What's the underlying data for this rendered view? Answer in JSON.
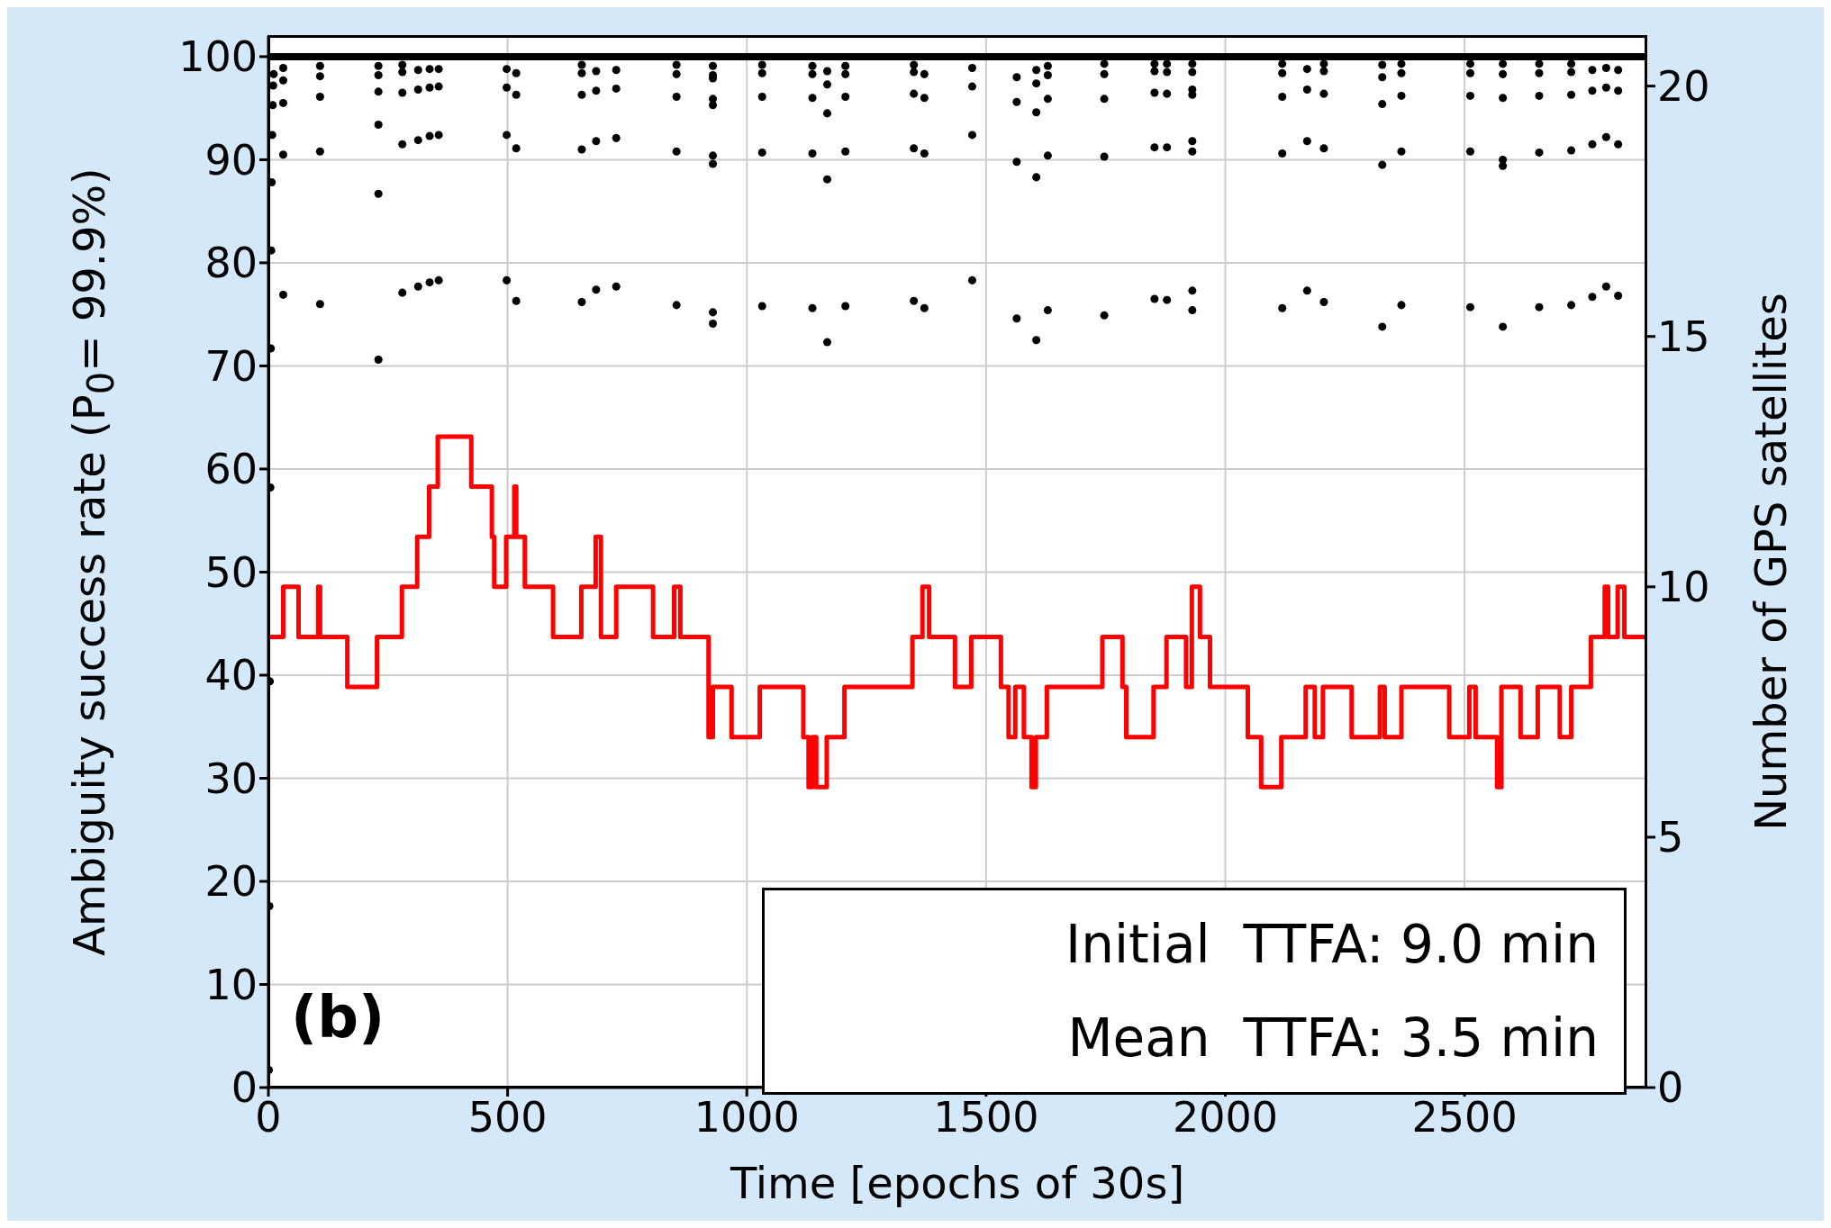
{
  "chart_data": {
    "type": "scatter",
    "xlabel": "Time [epochs of 30s]",
    "ylabel": "Ambiguity success rate (P$_{0}$= 99.9%)",
    "y2label": "Number of GPS satellites",
    "annotations": [
      "(b)",
      "Initial  TTFA: 9.0 min",
      "Mean  TTFA: 3.5 min"
    ],
    "xlim": [
      0,
      2880
    ],
    "xticks": [
      0,
      500,
      1000,
      1500,
      2000,
      2500
    ],
    "ylim": [
      0,
      102
    ],
    "yticks": [
      0,
      10,
      20,
      30,
      40,
      50,
      60,
      70,
      80,
      90,
      100
    ],
    "y2lim": [
      0,
      21
    ],
    "y2ticks": [
      0,
      5,
      10,
      15,
      20
    ],
    "grid": true,
    "legend": false,
    "marker": "circle",
    "series": [
      {
        "type": "line",
        "marker": "none",
        "color": "#000000",
        "x": [
          0,
          2880
        ],
        "values": [
          100,
          100
        ]
      },
      {
        "color": "#000000",
        "x": [
          1,
          2,
          3,
          4,
          5,
          6,
          7,
          8,
          9,
          10,
          11,
          31,
          31,
          31,
          31,
          31,
          108,
          108,
          108,
          108,
          108,
          230,
          230,
          230,
          230,
          230,
          230,
          280,
          280,
          280,
          280,
          280,
          313,
          313,
          313,
          313,
          337,
          337,
          337,
          337,
          356,
          356,
          356,
          356,
          498,
          498,
          498,
          498,
          518,
          518,
          518,
          518,
          655,
          655,
          655,
          655,
          655,
          685,
          685,
          685,
          685,
          727,
          727,
          727,
          727,
          853,
          853,
          853,
          853,
          853,
          929,
          929,
          929,
          929,
          929,
          929,
          929,
          929,
          929,
          1032,
          1032,
          1032,
          1032,
          1032,
          1137,
          1137,
          1137,
          1137,
          1137,
          1168,
          1168,
          1168,
          1168,
          1168,
          1206,
          1206,
          1206,
          1206,
          1206,
          1349,
          1349,
          1349,
          1349,
          1349,
          1371,
          1371,
          1371,
          1371,
          1471,
          1471,
          1471,
          1471,
          1564,
          1564,
          1564,
          1564,
          1605,
          1605,
          1605,
          1605,
          1605,
          1629,
          1629,
          1629,
          1629,
          1629,
          1747,
          1747,
          1747,
          1747,
          1747,
          1852,
          1852,
          1852,
          1852,
          1852,
          1878,
          1878,
          1878,
          1878,
          1878,
          1931,
          1931,
          1931,
          1931,
          1931,
          1931,
          1931,
          1931,
          2119,
          2119,
          2119,
          2119,
          2119,
          2171,
          2171,
          2171,
          2171,
          2206,
          2206,
          2206,
          2206,
          2206,
          2328,
          2328,
          2328,
          2328,
          2328,
          2368,
          2368,
          2368,
          2368,
          2368,
          2512,
          2512,
          2512,
          2512,
          2512,
          2580,
          2580,
          2580,
          2580,
          2580,
          2580,
          2656,
          2656,
          2656,
          2656,
          2656,
          2723,
          2723,
          2723,
          2723,
          2723,
          2767,
          2767,
          2767,
          2767,
          2796,
          2796,
          2796,
          2796,
          2821,
          2821,
          2821,
          2821
        ],
        "values": [
          1.7,
          17.6,
          39.4,
          58.2,
          71.7,
          81.2,
          87.8,
          92.4,
          95.3,
          97.2,
          98.3,
          98.9,
          97.7,
          95.5,
          90.5,
          76.9,
          99.1,
          98.1,
          96.1,
          90.8,
          76.0,
          99.1,
          98.2,
          96.6,
          93.4,
          86.7,
          70.6,
          99.2,
          98.5,
          96.5,
          91.5,
          77.1,
          98.7,
          96.8,
          91.9,
          77.7,
          98.8,
          97.0,
          92.3,
          78.1,
          98.8,
          97.1,
          92.4,
          78.3,
          98.8,
          97.0,
          92.4,
          78.3,
          98.4,
          96.3,
          91.1,
          76.3,
          99.2,
          98.4,
          96.3,
          91.0,
          76.2,
          98.6,
          96.7,
          91.8,
          77.4,
          98.7,
          96.9,
          92.1,
          77.7,
          99.2,
          98.3,
          96.1,
          90.8,
          75.9,
          99.1,
          98.2,
          97.9,
          95.9,
          95.3,
          90.4,
          89.6,
          75.2,
          74.1,
          99.2,
          98.4,
          96.1,
          90.7,
          75.8,
          99.1,
          98.3,
          96.0,
          90.6,
          75.6,
          98.6,
          97.3,
          94.5,
          88.1,
          72.3,
          99.1,
          98.3,
          96.1,
          90.8,
          75.8,
          99.2,
          98.5,
          96.4,
          91.1,
          76.3,
          98.3,
          96.0,
          90.6,
          75.6,
          98.9,
          97.1,
          92.4,
          78.3,
          98.0,
          95.6,
          89.8,
          74.6,
          98.7,
          97.4,
          94.6,
          88.3,
          72.5,
          99.1,
          98.2,
          95.9,
          90.4,
          75.4,
          99.3,
          98.3,
          95.9,
          90.3,
          74.9,
          99.3,
          98.6,
          96.5,
          91.2,
          76.5,
          99.3,
          98.5,
          96.4,
          91.2,
          76.4,
          99.3,
          98.5,
          96.8,
          96.3,
          91.8,
          90.8,
          77.3,
          75.4,
          99.3,
          98.4,
          96.1,
          90.6,
          75.6,
          98.8,
          96.8,
          91.8,
          77.3,
          99.3,
          98.6,
          96.4,
          91.1,
          76.2,
          99.2,
          98.0,
          95.4,
          89.5,
          73.8,
          99.3,
          98.4,
          96.2,
          90.8,
          75.9,
          99.3,
          98.4,
          96.2,
          90.8,
          75.7,
          99.3,
          98.3,
          96.0,
          90.0,
          89.4,
          73.8,
          99.3,
          98.4,
          96.2,
          90.7,
          75.7,
          99.3,
          98.5,
          96.3,
          90.9,
          75.9,
          98.7,
          96.7,
          91.5,
          76.7,
          98.9,
          97.0,
          92.2,
          77.7,
          98.7,
          96.7,
          91.5,
          76.8
        ]
      },
      {
        "type": "step",
        "marker": "none",
        "axis": "y2",
        "color": "#ff0000",
        "x": [
          0,
          31,
          63,
          104,
          108,
          165,
          227,
          279,
          311,
          336,
          354,
          424,
          467,
          472,
          497,
          514,
          518,
          536,
          595,
          654,
          684,
          695,
          727,
          804,
          848,
          861,
          920,
          929,
          968,
          1027,
          1118,
          1129,
          1137,
          1145,
          1167,
          1204,
          1346,
          1367,
          1381,
          1435,
          1469,
          1531,
          1547,
          1561,
          1579,
          1595,
          1604,
          1627,
          1743,
          1785,
          1793,
          1850,
          1877,
          1918,
          1930,
          1947,
          1968,
          2047,
          2075,
          2117,
          2168,
          2187,
          2204,
          2264,
          2323,
          2333,
          2368,
          2468,
          2510,
          2523,
          2568,
          2577,
          2617,
          2653,
          2699,
          2723,
          2764,
          2793,
          2800,
          2820,
          2834,
          2880
        ],
        "values": [
          9,
          10,
          9,
          10,
          9,
          8,
          9,
          10,
          11,
          12,
          13,
          12,
          11,
          10,
          11,
          12,
          11,
          10,
          9,
          10,
          11,
          9,
          10,
          9,
          10,
          9,
          7,
          8,
          7,
          8,
          7,
          6,
          7,
          6,
          7,
          8,
          9,
          10,
          9,
          8,
          9,
          8,
          7,
          8,
          7,
          6,
          7,
          8,
          9,
          8,
          7,
          8,
          9,
          8,
          10,
          9,
          8,
          7,
          6,
          7,
          8,
          7,
          8,
          7,
          8,
          7,
          8,
          7,
          8,
          7,
          6,
          8,
          7,
          8,
          7,
          8,
          9,
          10,
          9,
          10,
          9,
          9
        ]
      }
    ]
  }
}
